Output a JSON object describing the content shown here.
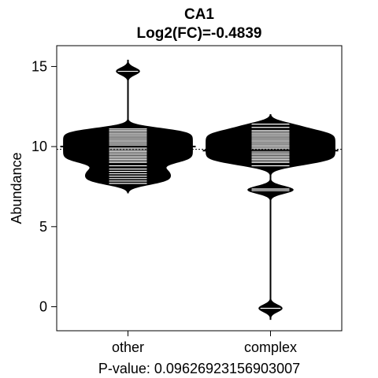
{
  "chart_data": {
    "type": "beanplot",
    "title": "CA1",
    "subtitle": "Log2(FC)=-0.4839",
    "xlabel": "P-value: 0.09626923156903007",
    "ylabel": "Abundance",
    "categories": [
      "other",
      "complex"
    ],
    "ylim": [
      -1.5,
      16.3
    ],
    "yticks": [
      0,
      5,
      10,
      15
    ],
    "overall_mean": 9.83,
    "grid": false,
    "legend": "none",
    "series": [
      {
        "name": "other",
        "mean": 10.0,
        "density_peak": 10.2,
        "density_range": [
          7.1,
          15.4
        ],
        "observations": [
          7.7,
          7.85,
          8.0,
          8.15,
          8.3,
          8.45,
          8.6,
          8.8,
          9.0,
          9.1,
          9.2,
          9.3,
          9.4,
          9.5,
          9.6,
          9.7,
          9.8,
          9.9,
          10.0,
          10.1,
          10.2,
          10.3,
          10.4,
          10.5,
          10.6,
          10.7,
          10.8,
          10.9,
          11.0,
          11.1,
          14.7
        ]
      },
      {
        "name": "complex",
        "mean": 9.75,
        "density_peak": 10.35,
        "density_range": [
          -0.8,
          12.0
        ],
        "observations": [
          -0.1,
          7.25,
          7.35,
          8.8,
          9.0,
          9.1,
          9.2,
          9.3,
          9.4,
          9.5,
          9.6,
          9.7,
          9.8,
          9.9,
          10.0,
          10.1,
          10.2,
          10.3,
          10.4,
          10.5,
          10.6,
          10.7,
          10.8,
          10.9,
          11.0,
          11.2,
          11.4
        ]
      }
    ]
  }
}
